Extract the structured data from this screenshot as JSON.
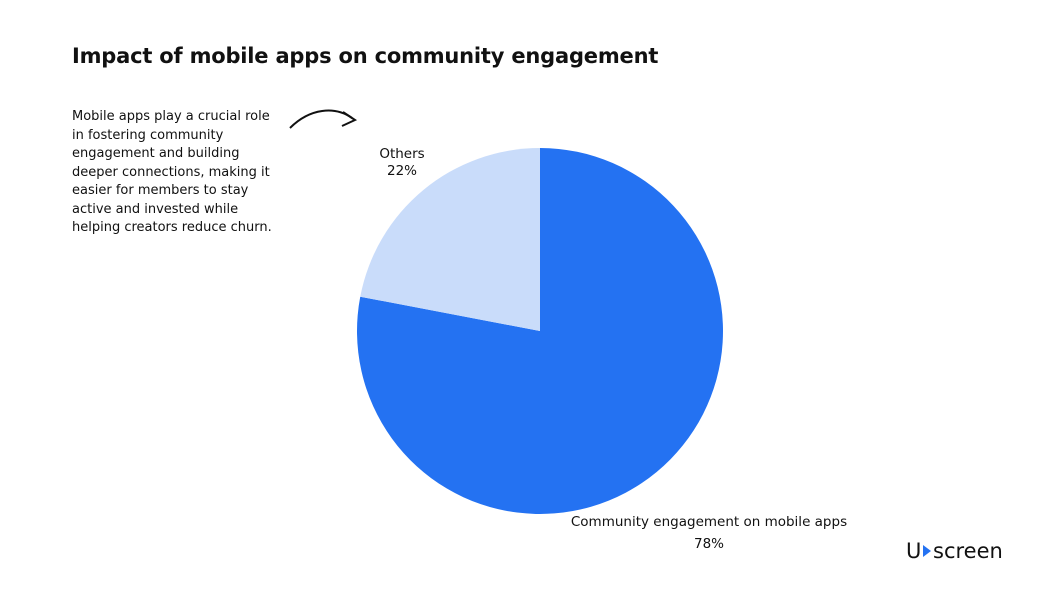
{
  "chart_data": {
    "type": "pie",
    "title": "Impact of mobile apps on community engagement",
    "annotation": "Mobile apps play a crucial role in fostering community engagement and building deeper connections, making it easier for members to stay active and invested while helping creators reduce churn.",
    "categories": [
      "Community engagement on mobile apps",
      "Others"
    ],
    "values": [
      78,
      22
    ],
    "value_labels": [
      "78%",
      "22%"
    ],
    "colors": [
      "#2472f2",
      "#c9dcfa"
    ],
    "start_angle": "top",
    "direction": "clockwise"
  },
  "logo": {
    "left": "U",
    "right": "screen"
  }
}
